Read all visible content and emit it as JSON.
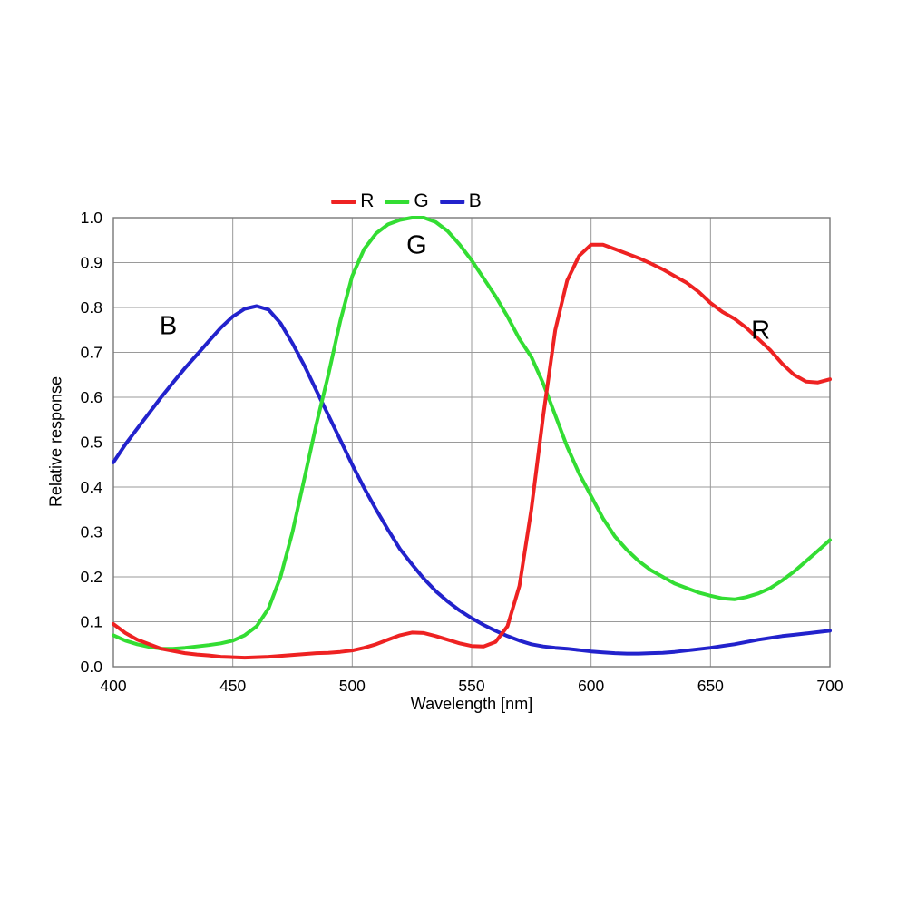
{
  "chart_data": {
    "type": "line",
    "title": "",
    "xlabel": "Wavelength [nm]",
    "ylabel": "Relative response",
    "xlim": [
      400,
      700
    ],
    "ylim": [
      0.0,
      1.0
    ],
    "x_ticks": [
      400,
      450,
      500,
      550,
      600,
      650,
      700
    ],
    "y_ticks": [
      0.0,
      0.1,
      0.2,
      0.3,
      0.4,
      0.5,
      0.6,
      0.7,
      0.8,
      0.9,
      1.0
    ],
    "grid": true,
    "legend_position": "top-center",
    "x": [
      400,
      405,
      410,
      415,
      420,
      425,
      430,
      435,
      440,
      445,
      450,
      455,
      460,
      465,
      470,
      475,
      480,
      485,
      490,
      495,
      500,
      505,
      510,
      515,
      520,
      525,
      530,
      535,
      540,
      545,
      550,
      555,
      560,
      565,
      570,
      575,
      580,
      585,
      590,
      595,
      600,
      605,
      610,
      615,
      620,
      625,
      630,
      635,
      640,
      645,
      650,
      655,
      660,
      665,
      670,
      675,
      680,
      685,
      690,
      695,
      700
    ],
    "series": [
      {
        "name": "R",
        "color": "#ee2222",
        "values": [
          0.095,
          0.075,
          0.06,
          0.05,
          0.04,
          0.035,
          0.03,
          0.027,
          0.025,
          0.022,
          0.021,
          0.02,
          0.021,
          0.022,
          0.024,
          0.026,
          0.028,
          0.03,
          0.031,
          0.033,
          0.036,
          0.042,
          0.05,
          0.06,
          0.07,
          0.076,
          0.075,
          0.068,
          0.06,
          0.052,
          0.046,
          0.045,
          0.055,
          0.09,
          0.18,
          0.35,
          0.56,
          0.75,
          0.86,
          0.915,
          0.94,
          0.94,
          0.93,
          0.92,
          0.91,
          0.898,
          0.885,
          0.87,
          0.855,
          0.835,
          0.81,
          0.79,
          0.775,
          0.755,
          0.73,
          0.705,
          0.675,
          0.65,
          0.635,
          0.633,
          0.64
        ]
      },
      {
        "name": "G",
        "color": "#33dd33",
        "values": [
          0.07,
          0.058,
          0.05,
          0.044,
          0.04,
          0.04,
          0.042,
          0.045,
          0.048,
          0.052,
          0.058,
          0.07,
          0.09,
          0.13,
          0.2,
          0.3,
          0.42,
          0.54,
          0.65,
          0.77,
          0.87,
          0.93,
          0.965,
          0.985,
          0.995,
          1.0,
          1.0,
          0.99,
          0.97,
          0.94,
          0.905,
          0.865,
          0.825,
          0.78,
          0.73,
          0.69,
          0.63,
          0.56,
          0.49,
          0.43,
          0.38,
          0.33,
          0.29,
          0.26,
          0.235,
          0.215,
          0.2,
          0.185,
          0.175,
          0.165,
          0.158,
          0.152,
          0.15,
          0.155,
          0.163,
          0.175,
          0.192,
          0.212,
          0.235,
          0.258,
          0.282
        ]
      },
      {
        "name": "B",
        "color": "#2222cc",
        "values": [
          0.455,
          0.495,
          0.53,
          0.565,
          0.6,
          0.633,
          0.665,
          0.695,
          0.725,
          0.755,
          0.78,
          0.797,
          0.803,
          0.795,
          0.765,
          0.72,
          0.67,
          0.615,
          0.56,
          0.505,
          0.45,
          0.398,
          0.35,
          0.305,
          0.262,
          0.228,
          0.196,
          0.168,
          0.145,
          0.125,
          0.108,
          0.093,
          0.08,
          0.068,
          0.058,
          0.05,
          0.045,
          0.042,
          0.04,
          0.037,
          0.034,
          0.032,
          0.03,
          0.029,
          0.029,
          0.03,
          0.031,
          0.033,
          0.036,
          0.039,
          0.042,
          0.046,
          0.05,
          0.055,
          0.06,
          0.064,
          0.068,
          0.071,
          0.074,
          0.077,
          0.08
        ]
      }
    ],
    "annotations": [
      {
        "text": "B",
        "x": 423,
        "y": 0.74
      },
      {
        "text": "G",
        "x": 527,
        "y": 0.92
      },
      {
        "text": "R",
        "x": 671,
        "y": 0.73
      }
    ],
    "style": {
      "grid_color": "#9a9a9a",
      "frame_color": "#777777",
      "line_width": 4
    }
  }
}
